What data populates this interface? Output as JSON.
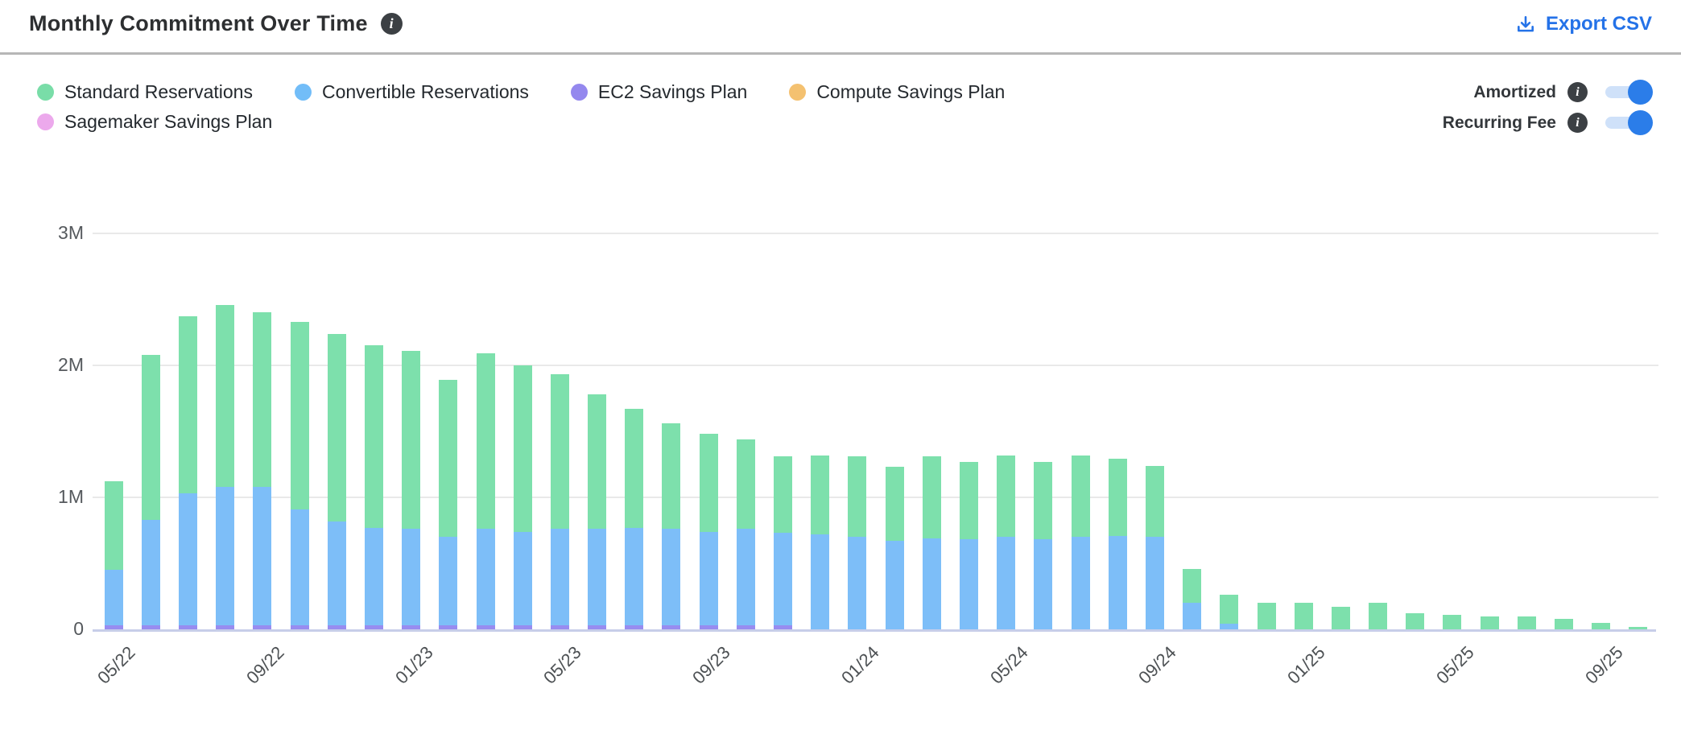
{
  "header": {
    "title": "Monthly Commitment Over Time",
    "export_label": "Export CSV"
  },
  "legend": {
    "items": [
      {
        "label": "Standard Reservations",
        "color": "#79dda8"
      },
      {
        "label": "Convertible Reservations",
        "color": "#72bdf8"
      },
      {
        "label": "EC2 Savings Plan",
        "color": "#9488ee"
      },
      {
        "label": "Compute Savings Plan",
        "color": "#f4c170"
      },
      {
        "label": "Sagemaker Savings Plan",
        "color": "#eca9ec"
      }
    ]
  },
  "toggles": [
    {
      "label": "Amortized",
      "on": true
    },
    {
      "label": "Recurring Fee",
      "on": true
    }
  ],
  "chart_data": {
    "type": "bar",
    "stacked": true,
    "title": "Monthly Commitment Over Time",
    "unit": "M (values in millions)",
    "x": [
      "05/22",
      "06/22",
      "07/22",
      "08/22",
      "09/22",
      "10/22",
      "11/22",
      "12/22",
      "01/23",
      "02/23",
      "03/23",
      "04/23",
      "05/23",
      "06/23",
      "07/23",
      "08/23",
      "09/23",
      "10/23",
      "11/23",
      "12/23",
      "01/24",
      "02/24",
      "03/24",
      "04/24",
      "05/24",
      "06/24",
      "07/24",
      "08/24",
      "09/24",
      "10/24",
      "11/24",
      "12/24",
      "01/25",
      "02/25",
      "03/25",
      "04/25",
      "05/25",
      "06/25",
      "07/25",
      "08/25",
      "09/25",
      "10/25"
    ],
    "x_tick_labels": [
      "05/22",
      "09/22",
      "01/23",
      "05/23",
      "09/23",
      "01/24",
      "05/24",
      "09/24",
      "01/25",
      "05/25",
      "09/25"
    ],
    "x_label_every": 4,
    "series": [
      {
        "name": "Standard Reservations",
        "color": "#7de0ac",
        "values": [
          0.67,
          1.25,
          1.34,
          1.38,
          1.32,
          1.42,
          1.42,
          1.38,
          1.35,
          1.19,
          1.33,
          1.26,
          1.17,
          1.02,
          0.9,
          0.8,
          0.74,
          0.68,
          0.58,
          0.6,
          0.61,
          0.56,
          0.62,
          0.59,
          0.62,
          0.59,
          0.62,
          0.58,
          0.54,
          0.26,
          0.22,
          0.2,
          0.2,
          0.17,
          0.2,
          0.12,
          0.11,
          0.1,
          0.1,
          0.08,
          0.05,
          0.02
        ]
      },
      {
        "name": "Convertible Reservations",
        "color": "#7dbef8",
        "values": [
          0.42,
          0.8,
          1.0,
          1.05,
          1.05,
          0.88,
          0.79,
          0.74,
          0.73,
          0.67,
          0.73,
          0.71,
          0.73,
          0.73,
          0.74,
          0.73,
          0.71,
          0.73,
          0.7,
          0.72,
          0.7,
          0.67,
          0.69,
          0.68,
          0.7,
          0.68,
          0.7,
          0.71,
          0.7,
          0.2,
          0.04,
          0,
          0,
          0,
          0,
          0,
          0,
          0,
          0,
          0,
          0,
          0
        ]
      },
      {
        "name": "EC2 Savings Plan",
        "color": "#988cf0",
        "values": [
          0.03,
          0.03,
          0.03,
          0.03,
          0.03,
          0.03,
          0.03,
          0.03,
          0.03,
          0.03,
          0.03,
          0.03,
          0.03,
          0.03,
          0.03,
          0.03,
          0.03,
          0.03,
          0.03,
          0,
          0,
          0,
          0,
          0,
          0,
          0,
          0,
          0,
          0,
          0,
          0,
          0,
          0,
          0,
          0,
          0,
          0,
          0,
          0,
          0,
          0,
          0
        ]
      },
      {
        "name": "Compute Savings Plan",
        "color": "#f4c170",
        "values": [
          0,
          0,
          0,
          0,
          0,
          0,
          0,
          0,
          0,
          0,
          0,
          0,
          0,
          0,
          0,
          0,
          0,
          0,
          0,
          0,
          0,
          0,
          0,
          0,
          0,
          0,
          0,
          0,
          0,
          0,
          0,
          0,
          0,
          0,
          0,
          0,
          0,
          0,
          0,
          0,
          0,
          0
        ]
      },
      {
        "name": "Sagemaker Savings Plan",
        "color": "#eca9ec",
        "values": [
          0,
          0,
          0,
          0,
          0,
          0,
          0,
          0,
          0,
          0,
          0,
          0,
          0,
          0,
          0,
          0,
          0,
          0,
          0,
          0,
          0,
          0,
          0,
          0,
          0,
          0,
          0,
          0,
          0,
          0,
          0,
          0,
          0,
          0,
          0,
          0,
          0,
          0,
          0,
          0,
          0,
          0
        ]
      }
    ],
    "stack_order_bottom_to_top": [
      "EC2 Savings Plan",
      "Convertible Reservations",
      "Standard Reservations",
      "Compute Savings Plan",
      "Sagemaker Savings Plan"
    ],
    "y_ticks": [
      "0",
      "1M",
      "2M",
      "3M"
    ],
    "ylim": [
      0,
      3
    ],
    "grid": true,
    "legend_position": "top-left"
  }
}
